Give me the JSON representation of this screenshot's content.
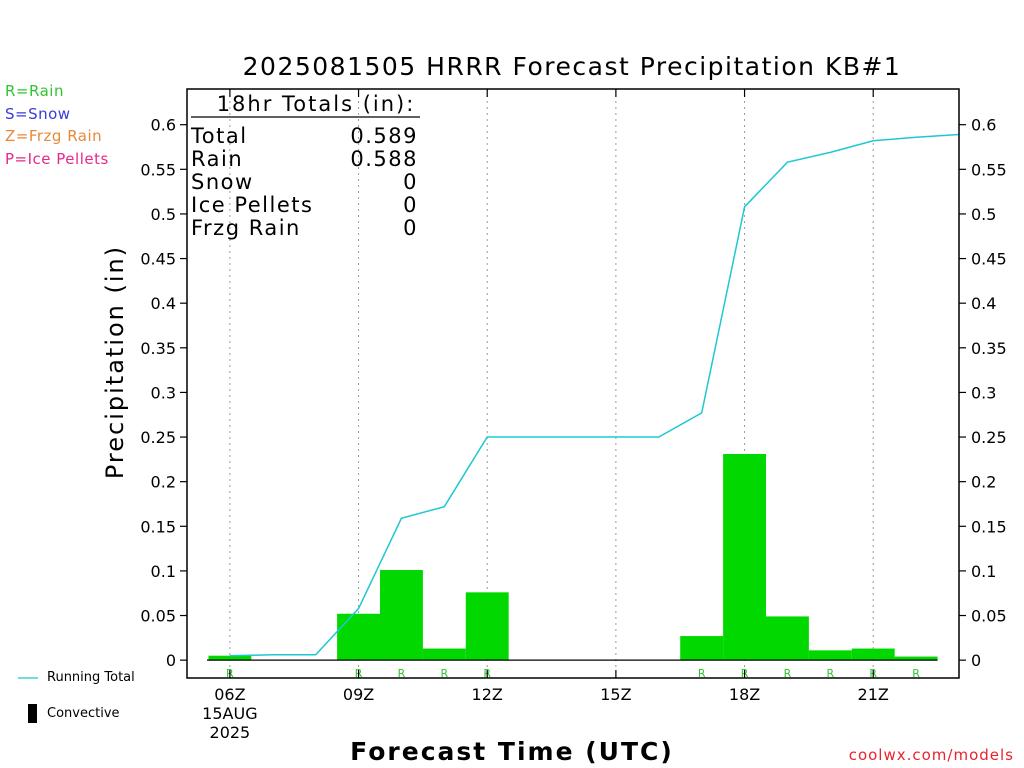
{
  "title": "2025081505 HRRR Forecast Precipitation KB#1",
  "precip_legend": [
    {
      "label": "R=Rain",
      "color": "#2fc52f"
    },
    {
      "label": "S=Snow",
      "color": "#3a3ad8"
    },
    {
      "label": "Z=Frzg Rain",
      "color": "#e8893a"
    },
    {
      "label": "P=Ice Pellets",
      "color": "#e8288a"
    }
  ],
  "totals": {
    "header": "18hr Totals (in):",
    "rows": [
      {
        "label": "Total",
        "value": "0.589"
      },
      {
        "label": "Rain",
        "value": "0.588"
      },
      {
        "label": "Snow",
        "value": "0"
      },
      {
        "label": "Ice Pellets",
        "value": "0"
      },
      {
        "label": "Frzg Rain",
        "value": "0"
      }
    ]
  },
  "bottom_legend": {
    "running_total": "Running Total",
    "convective": "Convective"
  },
  "site": "coolwx.com/models",
  "colors": {
    "bar": "#00d800",
    "line": "#1ec8d2",
    "grid": "#9a9a9a",
    "rain_label": "#2fc52f"
  },
  "chart_data": {
    "type": "bar",
    "title": "2025081505 HRRR Forecast Precipitation KB#1",
    "xlabel": "Forecast Time (UTC)",
    "ylabel": "Precipitation (in)",
    "ylim": [
      -0.02,
      0.64
    ],
    "yticks": [
      0,
      0.05,
      0.1,
      0.15,
      0.2,
      0.25,
      0.3,
      0.35,
      0.4,
      0.45,
      0.5,
      0.55,
      0.6
    ],
    "yticklabels": [
      "0",
      "0.05",
      "0.1",
      "0.15",
      "0.2",
      "0.25",
      "0.3",
      "0.35",
      "0.4",
      "0.45",
      "0.5",
      "0.55",
      "0.6"
    ],
    "xlim": [
      5.0,
      23.0
    ],
    "xticks": [
      {
        "hour": 6,
        "label": "06Z",
        "sublabels": [
          "15AUG",
          "2025"
        ]
      },
      {
        "hour": 9,
        "label": "09Z"
      },
      {
        "hour": 12,
        "label": "12Z"
      },
      {
        "hour": 15,
        "label": "15Z"
      },
      {
        "hour": 18,
        "label": "18Z"
      },
      {
        "hour": 21,
        "label": "21Z"
      }
    ],
    "grid": true,
    "bars": [
      {
        "hour": 6,
        "value": 0.005,
        "type": "R"
      },
      {
        "hour": 7,
        "value": 0,
        "type": ""
      },
      {
        "hour": 8,
        "value": 0,
        "type": ""
      },
      {
        "hour": 9,
        "value": 0.052,
        "type": "R"
      },
      {
        "hour": 10,
        "value": 0.101,
        "type": "R"
      },
      {
        "hour": 11,
        "value": 0.013,
        "type": "R"
      },
      {
        "hour": 12,
        "value": 0.076,
        "type": "R"
      },
      {
        "hour": 13,
        "value": 0,
        "type": ""
      },
      {
        "hour": 14,
        "value": 0,
        "type": ""
      },
      {
        "hour": 15,
        "value": 0,
        "type": ""
      },
      {
        "hour": 16,
        "value": 0,
        "type": ""
      },
      {
        "hour": 17,
        "value": 0.027,
        "type": "R"
      },
      {
        "hour": 18,
        "value": 0.231,
        "type": "R"
      },
      {
        "hour": 19,
        "value": 0.049,
        "type": "R"
      },
      {
        "hour": 20,
        "value": 0.011,
        "type": "R"
      },
      {
        "hour": 21,
        "value": 0.013,
        "type": "R"
      },
      {
        "hour": 22,
        "value": 0.004,
        "type": "R"
      }
    ],
    "running_total": {
      "name": "Running Total",
      "x": [
        6,
        7,
        8,
        9,
        10,
        11,
        12,
        13,
        14,
        15,
        16,
        17,
        18,
        19,
        20,
        21,
        22,
        23
      ],
      "y": [
        0.005,
        0.006,
        0.006,
        0.058,
        0.159,
        0.172,
        0.25,
        0.25,
        0.25,
        0.25,
        0.25,
        0.277,
        0.508,
        0.558,
        0.569,
        0.582,
        0.586,
        0.589
      ]
    }
  }
}
